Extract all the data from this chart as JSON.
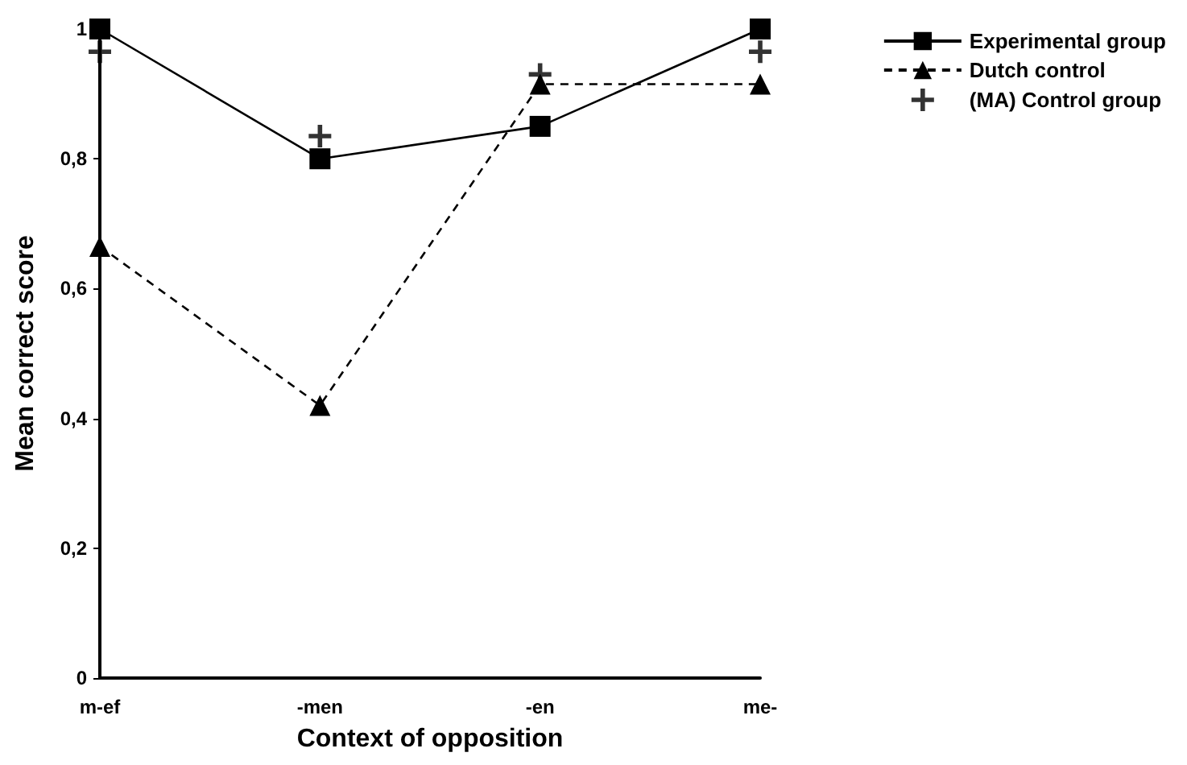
{
  "chart_data": {
    "type": "line",
    "xlabel": "Context of opposition",
    "ylabel": "Mean correct score",
    "categories": [
      "m-ef",
      "-men",
      "-en",
      "me-"
    ],
    "series": [
      {
        "name": "Experimental group",
        "color": "#000000",
        "values": [
          1,
          0.8,
          0.85,
          1
        ],
        "marker": "square",
        "line_style": "solid"
      },
      {
        "name": "Dutch control",
        "color": "#000000",
        "values": [
          0.665,
          0.42,
          0.915,
          0.915
        ],
        "marker": "triangle",
        "line_style": "dashed"
      },
      {
        "name": "(MA) Control group",
        "type": "scatter",
        "color": "#000000",
        "values": [
          0.965,
          0.835,
          0.93,
          0.965
        ],
        "marker": "cross"
      }
    ],
    "ylim": [
      0,
      1
    ],
    "yticks": [
      0,
      {
        "value": 0.2,
        "label": "0,2"
      },
      {
        "value": 0.4,
        "label": "0,4"
      },
      {
        "value": 0.6,
        "label": "0,6"
      },
      {
        "value": 0.8,
        "label": "0,8"
      },
      1
    ],
    "grid": false,
    "legend": "top right"
  }
}
